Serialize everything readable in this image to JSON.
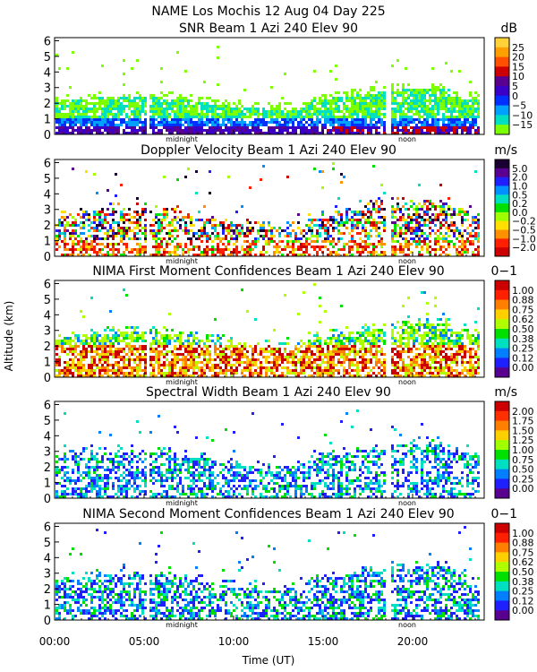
{
  "header": {
    "title_line": "NAME Los Mochis    12 Aug 04 Day 225"
  },
  "shared": {
    "ylabel": "Altitude (km)",
    "xlabel": "Time (UT)",
    "x_ticks": [
      "00:00",
      "05:00",
      "10:00",
      "15:00",
      "20:00"
    ],
    "x_tick_hours": [
      0,
      5,
      10,
      15,
      20
    ],
    "y_ticks": [
      "0",
      "1",
      "2",
      "3",
      "4",
      "5",
      "6"
    ],
    "x_range_hours": [
      0,
      24
    ],
    "y_range_km": [
      0,
      6.2
    ],
    "midnight_label": "midnight",
    "noon_label": "noon",
    "midnight_hour": 7.1,
    "noon_hour": 19.7
  },
  "chart_data": [
    {
      "type": "heatmap",
      "title": "SNR Beam 1 Azi 240 Elev 90",
      "unit": "dB",
      "colorbar_labels": [
        "25",
        "20",
        "15",
        "10",
        "5",
        "0",
        "−5",
        "−10",
        "−15"
      ],
      "colors": [
        "#ffd23a",
        "#ffa000",
        "#ff5000",
        "#cc0000",
        "#5a0090",
        "#3a00c8",
        "#0030ff",
        "#00a0ff",
        "#00e0c0",
        "#7cff00"
      ],
      "x_range_hours": [
        0,
        24
      ],
      "y_range_km": [
        0,
        6.2
      ]
    },
    {
      "type": "heatmap",
      "title": "Doppler Velocity Beam 1 Azi 240 Elev 90",
      "unit": "m/s",
      "colorbar_labels": [
        "5.0",
        "2.0",
        "1.0",
        "0.5",
        "0.2",
        "0.0",
        "−0.2",
        "−0.5",
        "−1.0",
        "−2.0"
      ],
      "colors": [
        "#1a0030",
        "#5a0090",
        "#2020ff",
        "#0090ff",
        "#00e0c0",
        "#00e000",
        "#a0ff00",
        "#ffe000",
        "#ff9000",
        "#ff2000",
        "#cc0000"
      ],
      "x_range_hours": [
        0,
        24
      ],
      "y_range_km": [
        0,
        6.2
      ]
    },
    {
      "type": "heatmap",
      "title": "NIMA First Moment Confidences Beam 1 Azi 240 Elev 90",
      "unit": "0−1",
      "colorbar_labels": [
        "1.00",
        "0.88",
        "0.75",
        "0.62",
        "0.50",
        "0.38",
        "0.25",
        "0.12",
        "0.00"
      ],
      "colors": [
        "#cc0000",
        "#ff2000",
        "#ff8000",
        "#ffd000",
        "#b0ff00",
        "#00e000",
        "#00e0c0",
        "#0080ff",
        "#2020ff",
        "#5a0090"
      ],
      "x_range_hours": [
        0,
        24
      ],
      "y_range_km": [
        0,
        6.2
      ]
    },
    {
      "type": "heatmap",
      "title": "Spectral Width Beam 1 Azi 240 Elev 90",
      "unit": "m/s",
      "colorbar_labels": [
        "2.00",
        "1.75",
        "1.50",
        "1.25",
        "1.00",
        "0.75",
        "0.50",
        "0.25",
        "0.00"
      ],
      "colors": [
        "#cc0000",
        "#ff3000",
        "#ff8000",
        "#ffd000",
        "#a0ff00",
        "#00e000",
        "#00e0c0",
        "#0080ff",
        "#2020ff",
        "#5a0090"
      ],
      "x_range_hours": [
        0,
        24
      ],
      "y_range_km": [
        0,
        6.2
      ]
    },
    {
      "type": "heatmap",
      "title": "NIMA Second Moment Confidences Beam 1 Azi 240 Elev 90",
      "unit": "0−1",
      "colorbar_labels": [
        "1.00",
        "0.88",
        "0.75",
        "0.62",
        "0.50",
        "0.38",
        "0.25",
        "0.12",
        "0.00"
      ],
      "colors": [
        "#cc0000",
        "#ff2000",
        "#ff8000",
        "#ffd000",
        "#b0ff00",
        "#00e000",
        "#00e0c0",
        "#0080ff",
        "#2020ff",
        "#5a0090"
      ],
      "x_range_hours": [
        0,
        24
      ],
      "y_range_km": [
        0,
        6.2
      ]
    }
  ]
}
